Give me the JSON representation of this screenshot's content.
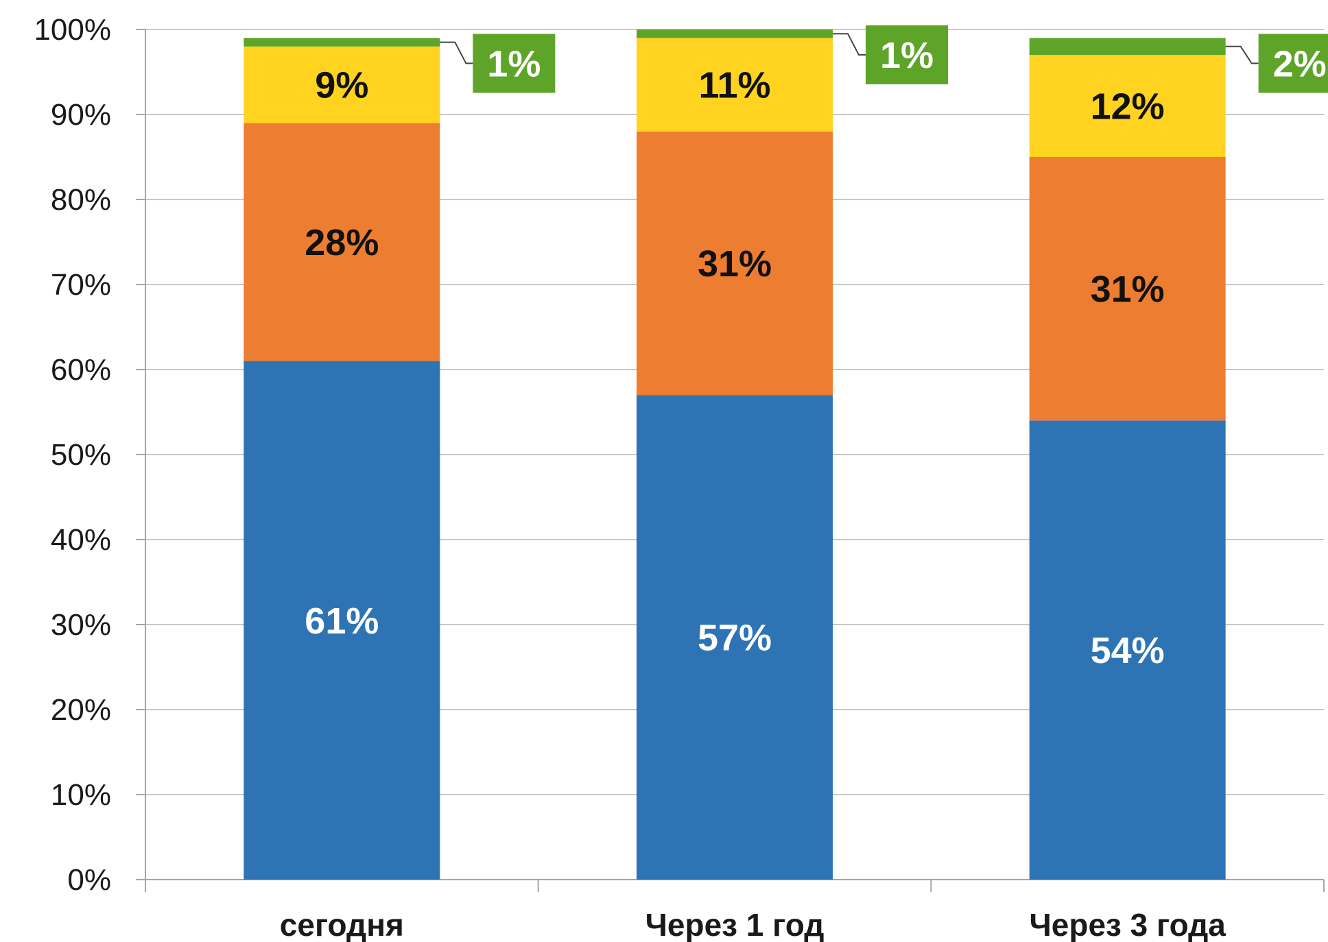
{
  "chart_data": {
    "type": "bar",
    "stacked": true,
    "categories": [
      "сегодня",
      "Через 1 год",
      "Через 3 года"
    ],
    "series": [
      {
        "values": [
          61,
          57,
          54
        ],
        "labels": [
          "61%",
          "57%",
          "54%"
        ],
        "color": "#2e74b5",
        "label_color": "#ffffff"
      },
      {
        "values": [
          28,
          31,
          31
        ],
        "labels": [
          "28%",
          "31%",
          "31%"
        ],
        "color": "#ed7d31",
        "label_color": "#111111"
      },
      {
        "values": [
          9,
          11,
          12
        ],
        "labels": [
          "9%",
          "11%",
          "12%"
        ],
        "color": "#ffd320",
        "label_color": "#111111"
      },
      {
        "values": [
          1,
          1,
          2
        ],
        "labels": [
          "1%",
          "1%",
          "2%"
        ],
        "color": "#5ea428",
        "label_color": "#ffffff",
        "callout": true
      }
    ],
    "ylim": [
      0,
      100
    ],
    "yticks": [
      "0%",
      "10%",
      "20%",
      "30%",
      "40%",
      "50%",
      "60%",
      "70%",
      "80%",
      "90%",
      "100%"
    ],
    "grid": true,
    "legend": "none"
  }
}
